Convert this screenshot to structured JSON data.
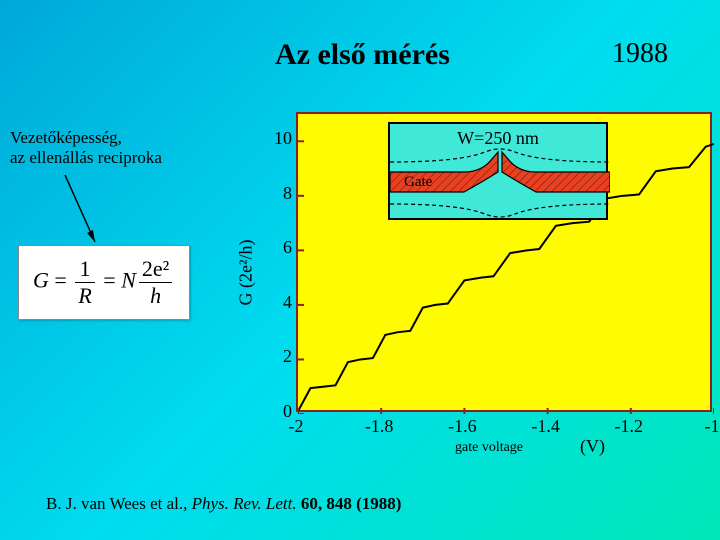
{
  "title": "Az első mérés",
  "year": "1988",
  "note_line1": "Vezetőképesség,",
  "note_line2": "az ellenállás reciproka",
  "formula": {
    "G": "G",
    "eq": " = ",
    "frac1_num": "1",
    "frac1_den": "R",
    "N": "N",
    "frac2_num": "2e²",
    "frac2_den": "h"
  },
  "citation_prefix": "B. J. van Wees et al., ",
  "citation_journal": "Phys. Rev. Lett.",
  "citation_suffix": " 60, 848 (1988)",
  "chart": {
    "type": "line-step",
    "plot_bg": "#fffb00",
    "border_color": "#8b2020",
    "line_color": "#000000",
    "line_width": 2,
    "xlim": [
      -2.0,
      -1.0
    ],
    "ylim": [
      0,
      11
    ],
    "yticks": [
      0,
      2,
      4,
      6,
      8,
      10
    ],
    "xticks": [
      -2,
      -1.8,
      -1.6,
      -1.4,
      -1.2,
      -1
    ],
    "ylabel": "G (2e²/h)",
    "xlabel_small": "gate voltage",
    "xlabel_unit": "(V)",
    "data": [
      [
        -2.0,
        0.1
      ],
      [
        -1.97,
        0.95
      ],
      [
        -1.94,
        1.0
      ],
      [
        -1.91,
        1.05
      ],
      [
        -1.88,
        1.9
      ],
      [
        -1.85,
        2.0
      ],
      [
        -1.82,
        2.05
      ],
      [
        -1.79,
        2.9
      ],
      [
        -1.76,
        3.0
      ],
      [
        -1.73,
        3.05
      ],
      [
        -1.7,
        3.9
      ],
      [
        -1.67,
        4.0
      ],
      [
        -1.64,
        4.05
      ],
      [
        -1.6,
        4.9
      ],
      [
        -1.56,
        5.0
      ],
      [
        -1.53,
        5.05
      ],
      [
        -1.49,
        5.9
      ],
      [
        -1.45,
        6.0
      ],
      [
        -1.42,
        6.05
      ],
      [
        -1.38,
        6.9
      ],
      [
        -1.34,
        7.0
      ],
      [
        -1.3,
        7.05
      ],
      [
        -1.26,
        7.9
      ],
      [
        -1.22,
        8.0
      ],
      [
        -1.18,
        8.05
      ],
      [
        -1.14,
        8.9
      ],
      [
        -1.1,
        9.0
      ],
      [
        -1.06,
        9.05
      ],
      [
        -1.02,
        9.8
      ],
      [
        -1.0,
        9.9
      ]
    ],
    "inset": {
      "bg": "#40e8d8",
      "text": "W=250 nm",
      "gate_label": "Gate",
      "gate_color": "#e84020",
      "border": "#000000"
    }
  }
}
